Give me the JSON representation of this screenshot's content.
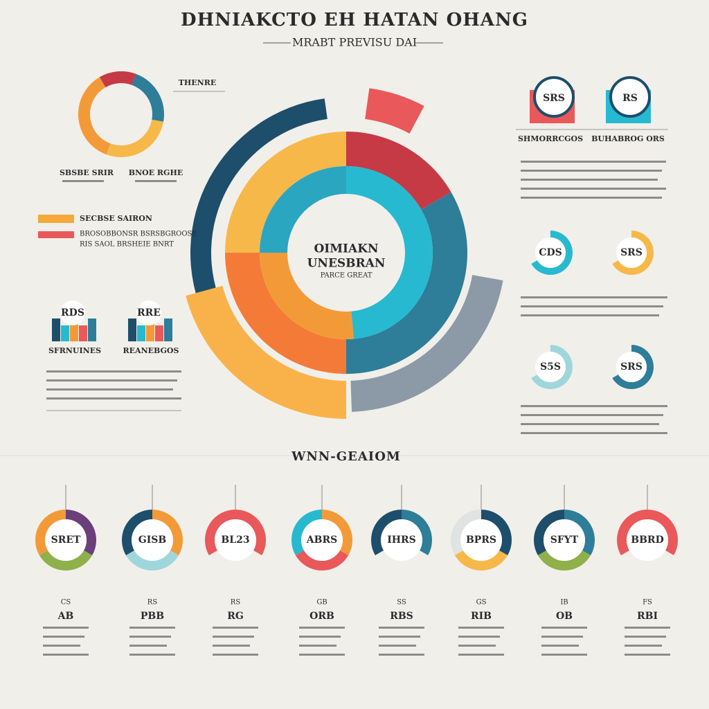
{
  "header": {
    "title": "DHNIAKCTO EH HATAN OHANG",
    "subtitle": "MRABT PREVISU DAI"
  },
  "left": {
    "top_label": "THENRE",
    "donut_labels": [
      "SBSBE SRIR",
      "BNOE RGHE"
    ],
    "legend": [
      "SECBSE SAIRON",
      "BROSOBBONSR BSRSBGROOSE",
      "RIS SAOL BRSHEIE BNRT"
    ],
    "bar_labels": [
      "SFRNUINES",
      "REANEBGOS"
    ],
    "bar_badges": [
      "RDS",
      "RRE"
    ]
  },
  "center": {
    "lines": [
      "OIMIAKN",
      "UNESBRAN",
      "PARCE GREAT"
    ]
  },
  "right": {
    "top_labels": [
      "SHMORRCGOS",
      "BUHABROG ORS"
    ],
    "badges": [
      "SRS",
      "RS"
    ],
    "donuts": [
      "CDS",
      "SRS",
      "S5S",
      "SRS"
    ]
  },
  "bottom": {
    "title": "WNN-GEAIOM",
    "items": [
      {
        "inside": "SRET",
        "small": "CS",
        "label": "AB"
      },
      {
        "inside": "GISB",
        "small": "RS",
        "label": "PBB"
      },
      {
        "inside": "BL23",
        "small": "RS",
        "label": "RG"
      },
      {
        "inside": "ABRS",
        "small": "GB",
        "label": "ORB"
      },
      {
        "inside": "IHRS",
        "small": "SS",
        "label": "RBS"
      },
      {
        "inside": "BPRS",
        "small": "GS",
        "label": "RIB"
      },
      {
        "inside": "SFYT",
        "small": "IB",
        "label": "OB"
      },
      {
        "inside": "BBRD",
        "small": "FS",
        "label": "RBI"
      }
    ]
  }
}
